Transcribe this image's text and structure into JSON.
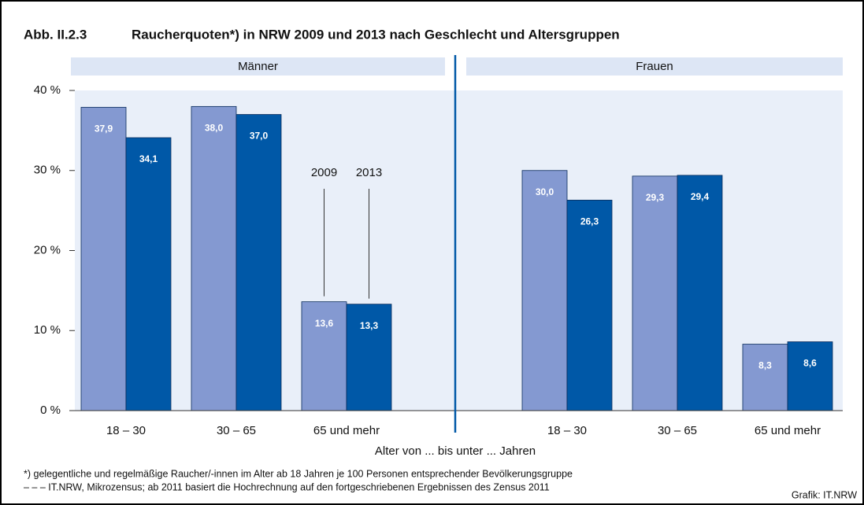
{
  "chart_data": {
    "type": "bar",
    "figure_number": "Abb. II.2.3",
    "title": "Raucherquoten*) in NRW 2009 und 2013 nach Geschlecht und Altersgruppen",
    "x_label": "Alter von ... bis unter ... Jahren",
    "ylim": [
      0,
      40
    ],
    "yticks": [
      {
        "value": 0,
        "label": "0 %"
      },
      {
        "value": 10,
        "label": "10 %"
      },
      {
        "value": 20,
        "label": "20 %"
      },
      {
        "value": 30,
        "label": "30 %"
      },
      {
        "value": 40,
        "label": "40 %"
      }
    ],
    "series": [
      {
        "name": "2009",
        "color": "#8499d1"
      },
      {
        "name": "2013",
        "color": "#0058a7"
      }
    ],
    "panels": [
      {
        "name": "Männer",
        "categories": [
          "18 – 30",
          "30 – 65",
          "65 und mehr"
        ],
        "values": [
          [
            37.9,
            38.0,
            13.6
          ],
          [
            34.1,
            37.0,
            13.3
          ]
        ],
        "value_labels": [
          [
            "37,9",
            "38,0",
            "13,6"
          ],
          [
            "34,1",
            "37,0",
            "13,3"
          ]
        ]
      },
      {
        "name": "Frauen",
        "categories": [
          "18 – 30",
          "30 – 65",
          "65 und mehr"
        ],
        "values": [
          [
            30.0,
            29.3,
            8.3
          ],
          [
            26.3,
            29.4,
            8.6
          ]
        ],
        "value_labels": [
          [
            "30,0",
            "29,3",
            "8,3"
          ],
          [
            "26,3",
            "29,4",
            "8,6"
          ]
        ]
      }
    ],
    "notes": [
      "*) gelegentliche und regelmäßige Raucher/-innen im Alter ab 18 Jahren je 100 Personen entsprechender Bevölkerungsgruppe",
      "– – – IT.NRW, Mikrozensus; ab 2011 basiert die Hochrechnung auf den fortgeschriebenen Ergebnissen des Zensus 2011"
    ],
    "source": "Grafik: IT.NRW"
  }
}
